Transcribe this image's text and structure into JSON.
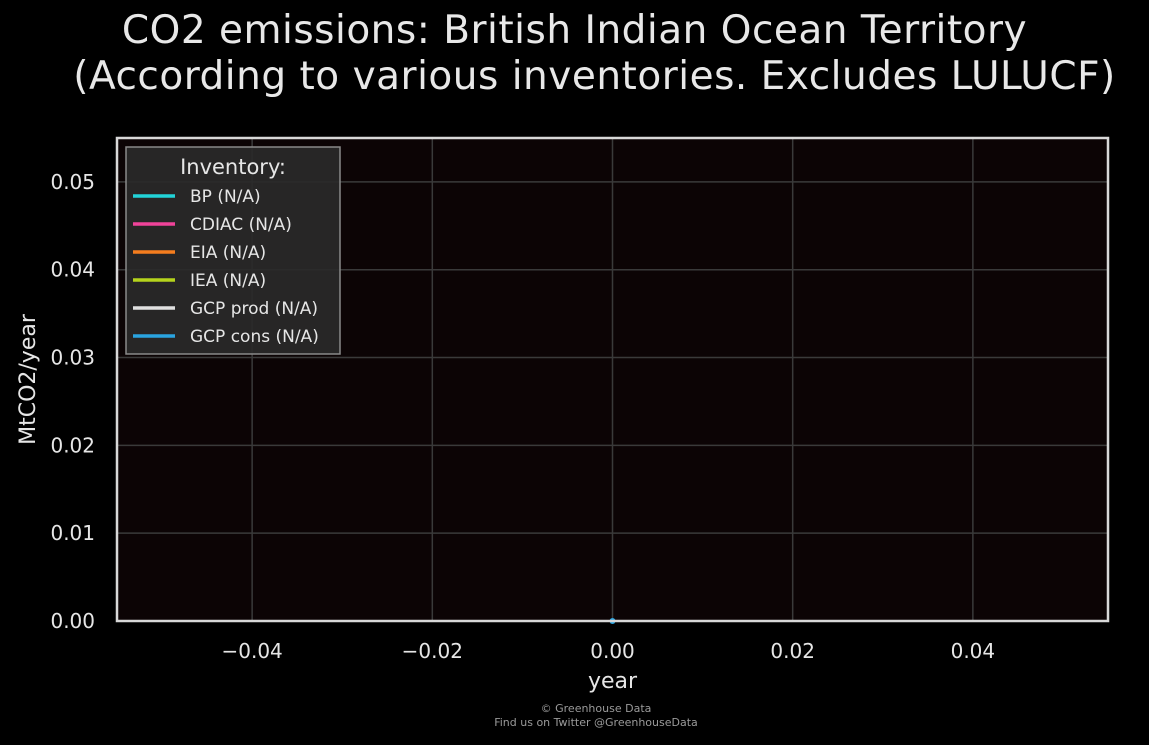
{
  "chart_data": {
    "type": "line",
    "title": "CO2 emissions: British Indian Ocean Territory",
    "subtitle": "(According to various inventories. Excludes LULUCF)",
    "xlabel": "year",
    "ylabel": "MtCO2/year",
    "xlim": [
      -0.055,
      0.055
    ],
    "ylim": [
      0,
      0.055
    ],
    "x_ticks": [
      -0.04,
      -0.02,
      0.0,
      0.02,
      0.04
    ],
    "x_tick_labels": [
      "−0.04",
      "−0.02",
      "0.00",
      "0.02",
      "0.04"
    ],
    "y_ticks": [
      0.0,
      0.01,
      0.02,
      0.03,
      0.04,
      0.05
    ],
    "y_tick_labels": [
      "0.00",
      "0.01",
      "0.02",
      "0.03",
      "0.04",
      "0.05"
    ],
    "grid": true,
    "legend": {
      "title": "Inventory:",
      "placement": "top-left"
    },
    "series": [
      {
        "name": "BP (N/A)",
        "color": "#22d3d8",
        "x": [],
        "y": []
      },
      {
        "name": "CDIAC (N/A)",
        "color": "#f0439a",
        "x": [],
        "y": []
      },
      {
        "name": "EIA (N/A)",
        "color": "#f57d1e",
        "x": [],
        "y": []
      },
      {
        "name": "IEA (N/A)",
        "color": "#b5d31c",
        "x": [],
        "y": []
      },
      {
        "name": "GCP prod (N/A)",
        "color": "#e0e0e0",
        "x": [],
        "y": []
      },
      {
        "name": "GCP cons (N/A)",
        "color": "#2aa4e0",
        "x": [
          0
        ],
        "y": [
          0
        ]
      }
    ]
  },
  "footer": {
    "copyright": "© Greenhouse Data",
    "twitter": "Find us on Twitter @GreenhouseData"
  },
  "colors": {
    "background": "#000000",
    "plot_background": "#0c0405",
    "grid": "#3a3a3a",
    "axes_frame": "#d8d8d8",
    "text": "#e6e6e6"
  }
}
